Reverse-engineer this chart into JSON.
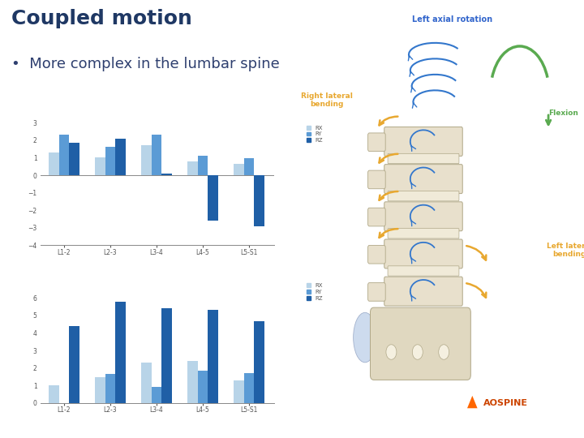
{
  "title": "Coupled motion",
  "bullet": "More complex in the lumbar spine",
  "categories": [
    "L1-2",
    "L2-3",
    "L3-4",
    "L4-5",
    "L5-S1"
  ],
  "chart1_RX": [
    1.3,
    1.0,
    1.7,
    0.8,
    0.65
  ],
  "chart1_RY": [
    2.3,
    1.6,
    2.3,
    1.1,
    0.95
  ],
  "chart1_RZ": [
    1.85,
    2.1,
    0.1,
    -2.6,
    -2.9
  ],
  "chart1_ylim": [
    -4,
    3
  ],
  "chart1_yticks": [
    -4,
    -3,
    -2,
    -1,
    0,
    1,
    2,
    3
  ],
  "chart2_RX": [
    1.0,
    1.45,
    2.3,
    2.4,
    1.3
  ],
  "chart2_RY": [
    0.0,
    1.65,
    0.9,
    1.85,
    1.7
  ],
  "chart2_RZ": [
    4.4,
    5.8,
    5.4,
    5.3,
    4.65
  ],
  "chart2_ylim": [
    0,
    7
  ],
  "chart2_yticks": [
    0,
    1,
    2,
    3,
    4,
    5,
    6
  ],
  "color_RX": "#b8d4e8",
  "color_RY": "#5b9bd5",
  "color_RZ": "#1f5fa6",
  "background_color": "#ffffff",
  "title_color": "#1f3864",
  "bullet_color": "#2e3f6f",
  "title_fontsize": 18,
  "bullet_fontsize": 13,
  "spine_label1": "Left axial rotation",
  "spine_label2": "Right lateral\nbending",
  "spine_label3": "Flexion",
  "spine_label4": "Left lateral\nbending",
  "spine_color1": "#e8a830",
  "spine_color2": "#e8a830",
  "spine_color3": "#5aaa50",
  "spine_color4": "#e8a830",
  "aospine_color": "#cc4400",
  "aospine_tri_color": "#ff6600"
}
